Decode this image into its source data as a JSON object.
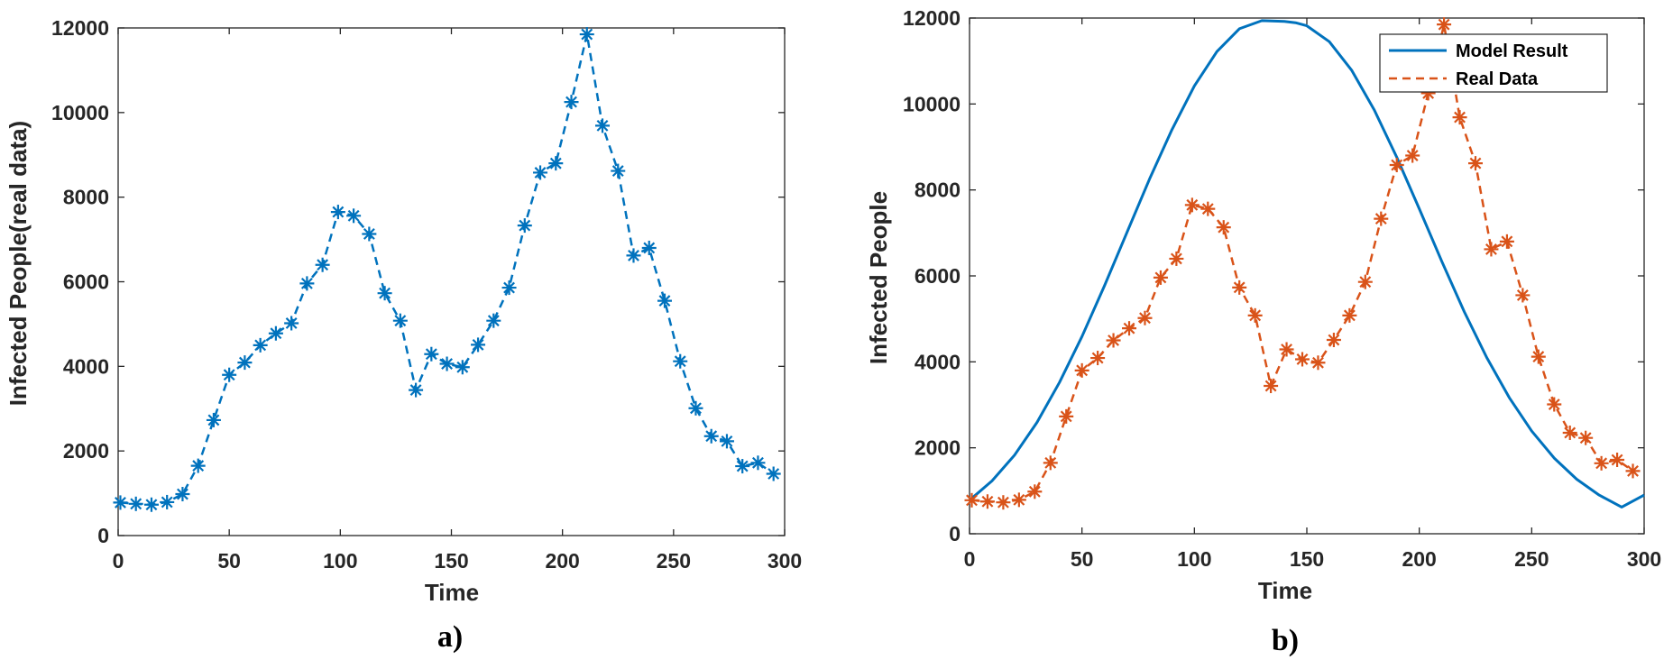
{
  "colors": {
    "series_a": "#0072BD",
    "model": "#0072BD",
    "real": "#D95319",
    "axis": "#262626"
  },
  "chart_data": [
    {
      "panel_label": "a)",
      "type": "line",
      "xlabel": "Time",
      "ylabel": "Infected People(real data)",
      "xlim": [
        0,
        300
      ],
      "ylim": [
        0,
        12000
      ],
      "xticks": [
        0,
        50,
        100,
        150,
        200,
        250,
        300
      ],
      "yticks": [
        0,
        2000,
        4000,
        6000,
        8000,
        10000,
        12000
      ],
      "grid": false,
      "legend": null,
      "series": [
        {
          "style": "dashed line with asterisk markers",
          "color": "#0072BD",
          "x": [
            1,
            8,
            15,
            22,
            29,
            36,
            43,
            50,
            57,
            64,
            71,
            78,
            85,
            92,
            99,
            106,
            113,
            120,
            127,
            134,
            141,
            148,
            155,
            162,
            169,
            176,
            183,
            190,
            197,
            204,
            211,
            218,
            225,
            232,
            239,
            246,
            253,
            260,
            267,
            274,
            281,
            288,
            295
          ],
          "y": [
            780,
            750,
            730,
            790,
            980,
            1650,
            2730,
            3800,
            4090,
            4500,
            4780,
            5020,
            5960,
            6400,
            7650,
            7560,
            7130,
            5730,
            5080,
            3440,
            4290,
            4060,
            3980,
            4510,
            5080,
            5860,
            7330,
            8580,
            8800,
            10250,
            11850,
            9690,
            8620,
            6620,
            6800,
            5550,
            4120,
            3010,
            2350,
            2230,
            1640,
            1720,
            1460
          ]
        }
      ]
    },
    {
      "panel_label": "b)",
      "type": "line",
      "xlabel": "Time",
      "ylabel": "Infected People",
      "xlim": [
        0,
        300
      ],
      "ylim": [
        0,
        12000
      ],
      "xticks": [
        0,
        50,
        100,
        150,
        200,
        250,
        300
      ],
      "yticks": [
        0,
        2000,
        4000,
        6000,
        8000,
        10000,
        12000
      ],
      "grid": false,
      "legend": "top-right",
      "series": [
        {
          "name": "Model Result",
          "style": "solid line",
          "color": "#0072BD",
          "x": [
            0,
            10,
            20,
            30,
            40,
            50,
            60,
            70,
            80,
            90,
            100,
            110,
            120,
            130,
            140,
            145,
            150,
            160,
            170,
            180,
            190,
            200,
            210,
            220,
            230,
            240,
            250,
            260,
            270,
            280,
            290,
            300
          ],
          "y": [
            780,
            1230,
            1830,
            2590,
            3520,
            4590,
            5770,
            7010,
            8250,
            9400,
            10420,
            11220,
            11750,
            11940,
            11920,
            11890,
            11820,
            11450,
            10780,
            9860,
            8760,
            7560,
            6340,
            5170,
            4100,
            3170,
            2390,
            1760,
            1270,
            900,
            620,
            900
          ]
        },
        {
          "name": "Real Data",
          "style": "dashed line with asterisk markers",
          "color": "#D95319",
          "x": [
            1,
            8,
            15,
            22,
            29,
            36,
            43,
            50,
            57,
            64,
            71,
            78,
            85,
            92,
            99,
            106,
            113,
            120,
            127,
            134,
            141,
            148,
            155,
            162,
            169,
            176,
            183,
            190,
            197,
            204,
            211,
            218,
            225,
            232,
            239,
            246,
            253,
            260,
            267,
            274,
            281,
            288,
            295
          ],
          "y": [
            780,
            750,
            730,
            790,
            980,
            1650,
            2730,
            3800,
            4090,
            4500,
            4780,
            5020,
            5960,
            6400,
            7650,
            7560,
            7130,
            5730,
            5080,
            3440,
            4290,
            4060,
            3980,
            4510,
            5080,
            5860,
            7330,
            8580,
            8800,
            10250,
            11850,
            9690,
            8620,
            6620,
            6800,
            5550,
            4120,
            3010,
            2350,
            2230,
            1640,
            1720,
            1460
          ]
        }
      ]
    }
  ]
}
